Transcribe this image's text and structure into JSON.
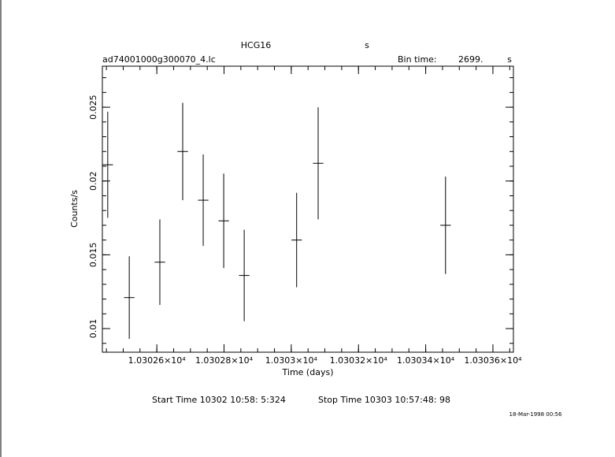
{
  "chart_data": {
    "type": "errorbar",
    "title": "HCG16",
    "title_unit": "s",
    "file": "ad74001000g300070_4.lc",
    "bin_time_label": "Bin time:",
    "bin_time": "2699.",
    "bin_time_unit": "s",
    "x_label": "Time (days)",
    "y_label": "Counts/s",
    "start_time": "Start Time 10302 10:58: 5:324",
    "stop_time": "Stop Time 10303 10:57:48: 98",
    "timestamp": "18-Mar-1998 00:56",
    "color": "#000000",
    "x": [
      10302.454,
      10302.518,
      10302.609,
      10302.677,
      10302.738,
      10302.799,
      10302.86,
      10303.016,
      10303.08,
      10303.459
    ],
    "values": [
      0.0211,
      0.0121,
      0.0145,
      0.022,
      0.0187,
      0.0173,
      0.0136,
      0.016,
      0.0212,
      0.017
    ],
    "errors": [
      0.0036,
      0.0028,
      0.0029,
      0.0033,
      0.0031,
      0.0032,
      0.0031,
      0.0032,
      0.0038,
      0.0033
    ],
    "xerr": 0.0156,
    "xlim": [
      10302.438,
      10303.661
    ],
    "ylim": [
      0.0084,
      0.02778
    ],
    "xticks": [
      {
        "value": 10302.6,
        "label": "1.03026×10⁴"
      },
      {
        "value": 10302.8,
        "label": "1.03028×10⁴"
      },
      {
        "value": 10303.0,
        "label": "1.0303×10⁴"
      },
      {
        "value": 10303.2,
        "label": "1.03032×10⁴"
      },
      {
        "value": 10303.4,
        "label": "1.03034×10⁴"
      },
      {
        "value": 10303.6,
        "label": "1.03036×10⁴"
      }
    ],
    "yticks": [
      0.01,
      0.015,
      0.02,
      0.025
    ]
  }
}
